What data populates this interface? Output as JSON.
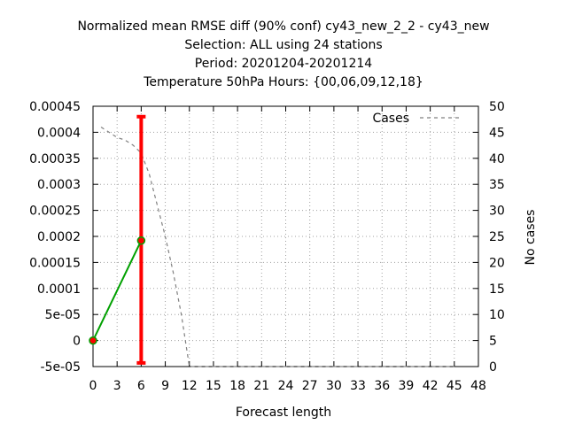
{
  "chart_data": {
    "type": "line",
    "title_lines": [
      "Normalized mean RMSE diff (90% conf) cy43_new_2_2 - cy43_new",
      "Selection: ALL using    24 stations",
      "Period: 20201204-20201214",
      "Temperature 50hPa   Hours: {00,06,09,12,18}"
    ],
    "xlabel": "Forecast length",
    "ylabel": "",
    "y2label": "No cases",
    "xlim": [
      0,
      48
    ],
    "ylim": [
      -5e-05,
      0.00045
    ],
    "y2lim": [
      0,
      50
    ],
    "x_ticks": [
      "0",
      "3",
      "6",
      "9",
      "12",
      "15",
      "18",
      "21",
      "24",
      "27",
      "30",
      "33",
      "36",
      "39",
      "42",
      "45",
      "48"
    ],
    "y_ticks": [
      "-5e-05",
      "0",
      "5e-05",
      "0.0001",
      "0.00015",
      "0.0002",
      "0.00025",
      "0.0003",
      "0.00035",
      "0.0004",
      "0.00045"
    ],
    "y2_ticks": [
      "0",
      "5",
      "10",
      "15",
      "20",
      "25",
      "30",
      "35",
      "40",
      "45",
      "50"
    ],
    "grid": true,
    "legend_position": "top-right",
    "series": [
      {
        "key": "rmse_diff",
        "x": [
          0,
          6
        ],
        "y": [
          0.0,
          0.000192
        ],
        "color": "#00a000",
        "marker_color": "#ff0000"
      },
      {
        "key": "confidence",
        "x": [
          6
        ],
        "low": [
          -4.3e-05
        ],
        "high": [
          0.00043
        ],
        "color": "#ff0000"
      },
      {
        "key": "cases",
        "name": "Cases",
        "axis": "y2",
        "x": [
          1,
          2,
          3,
          4,
          5,
          6,
          7,
          8,
          9,
          10,
          11,
          12,
          13,
          15,
          18,
          21,
          24,
          27,
          30,
          33,
          36,
          39,
          42,
          45
        ],
        "y": [
          46,
          45,
          44,
          43.5,
          42.5,
          41,
          37,
          31,
          25,
          18,
          10,
          0,
          0,
          0,
          0,
          0,
          0,
          0,
          0,
          0,
          0,
          0,
          0,
          0
        ],
        "color": "#808080"
      }
    ]
  }
}
